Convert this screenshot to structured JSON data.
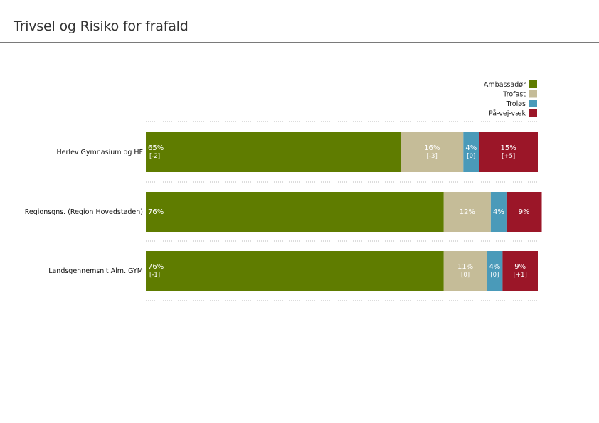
{
  "page": {
    "title": "Trivsel og Risiko for frafald"
  },
  "chart_data": {
    "type": "bar",
    "orientation": "horizontal",
    "stacked": true,
    "categories": [
      "Herlev Gymnasium og HF",
      "Regionsgns. (Region Hovedstaden)",
      "Landsgennemsnit Alm. GYM"
    ],
    "series": [
      {
        "name": "Ambassadør",
        "color": "#5f7c00",
        "values": [
          65,
          76,
          76
        ],
        "value_labels": [
          "65%",
          "76%",
          "76%"
        ],
        "changes": [
          "[-2]",
          "",
          "[-1]"
        ]
      },
      {
        "name": "Trofast",
        "color": "#c5bc98",
        "values": [
          16,
          12,
          11
        ],
        "value_labels": [
          "16%",
          "12%",
          "11%"
        ],
        "changes": [
          "[-3]",
          "",
          "[0]"
        ]
      },
      {
        "name": "Troløs",
        "color": "#4a9ab9",
        "values": [
          4,
          4,
          4
        ],
        "value_labels": [
          "4%",
          "4%",
          "4%"
        ],
        "changes": [
          "[0]",
          "",
          "[0]"
        ]
      },
      {
        "name": "På-vej-væk",
        "color": "#9b1628",
        "values": [
          15,
          9,
          9
        ],
        "value_labels": [
          "15%",
          "9%",
          "9%"
        ],
        "changes": [
          "[+5]",
          "",
          "[+1]"
        ]
      }
    ],
    "xlim": [
      0,
      100
    ],
    "legend": "top-right",
    "grid": true
  }
}
